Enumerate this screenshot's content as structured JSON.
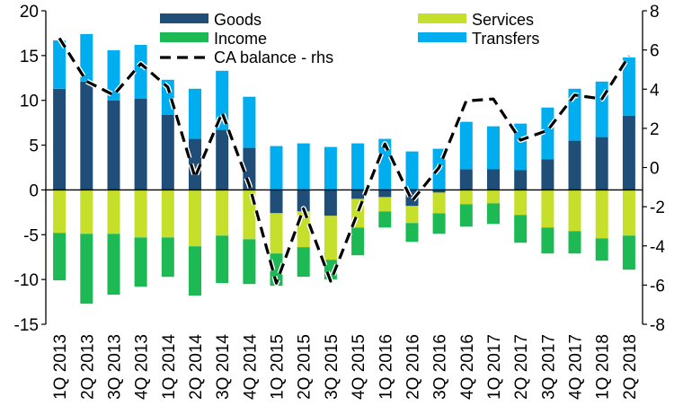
{
  "chart_data": {
    "type": "bar",
    "stacked": true,
    "categories": [
      "1Q 2013",
      "2Q 2013",
      "3Q 2013",
      "4Q 2013",
      "1Q 2014",
      "2Q 2014",
      "3Q 2014",
      "4Q 2014",
      "1Q 2015",
      "2Q 2015",
      "3Q 2015",
      "4Q 2015",
      "1Q 2016",
      "2Q 2016",
      "3Q 2016",
      "4Q 2016",
      "1Q 2017",
      "2Q 2017",
      "3Q 2017",
      "4Q 2017",
      "1Q 2018",
      "2Q 2018"
    ],
    "series": [
      {
        "name": "Goods",
        "color": "#1f4e79",
        "values": [
          11.3,
          12.1,
          10.0,
          10.2,
          8.4,
          5.7,
          6.7,
          4.7,
          -2.6,
          -2.4,
          -2.9,
          -1.0,
          -0.8,
          -1.8,
          -0.3,
          2.3,
          2.3,
          2.2,
          3.4,
          5.5,
          5.9,
          8.3
        ]
      },
      {
        "name": "Services",
        "color": "#c5df2a",
        "values": [
          -4.8,
          -4.9,
          -4.9,
          -5.3,
          -5.3,
          -6.3,
          -5.1,
          -5.5,
          -4.5,
          -4.0,
          -4.9,
          -3.2,
          -1.6,
          -1.9,
          -2.3,
          -1.6,
          -1.5,
          -2.8,
          -4.2,
          -4.6,
          -5.4,
          -5.1
        ]
      },
      {
        "name": "Income",
        "color": "#1db954",
        "values": [
          -5.3,
          -7.8,
          -6.8,
          -5.5,
          -4.4,
          -5.5,
          -5.3,
          -5.0,
          -3.6,
          -3.3,
          -2.2,
          -3.1,
          -1.8,
          -2.1,
          -2.3,
          -2.5,
          -2.3,
          -3.1,
          -2.9,
          -2.5,
          -2.5,
          -3.8
        ]
      },
      {
        "name": "Transfers",
        "color": "#00adef",
        "values": [
          5.4,
          5.3,
          5.6,
          6.0,
          3.9,
          5.6,
          6.6,
          5.7,
          4.9,
          5.2,
          4.8,
          5.2,
          5.7,
          4.3,
          4.6,
          5.3,
          4.8,
          5.2,
          5.8,
          5.8,
          6.2,
          6.5
        ]
      }
    ],
    "line": {
      "name": "CA balance - rhs",
      "color": "#000000",
      "axis": "right",
      "values": [
        6.6,
        4.4,
        3.7,
        5.3,
        4.1,
        -0.5,
        2.8,
        -0.9,
        -5.9,
        -2.1,
        -5.8,
        -2.3,
        1.2,
        -1.7,
        0.0,
        3.4,
        3.5,
        1.4,
        1.9,
        3.7,
        3.5,
        5.7
      ]
    },
    "y_left": {
      "min": -15,
      "max": 20,
      "ticks": [
        -15,
        -10,
        -5,
        0,
        5,
        10,
        15,
        20
      ]
    },
    "y_right": {
      "min": -8,
      "max": 8,
      "ticks": [
        -8,
        -6,
        -4,
        -2,
        0,
        2,
        4,
        6,
        8
      ]
    },
    "grid": false,
    "legend": {
      "placement": "top",
      "entries": [
        {
          "label": "Goods",
          "kind": "bar",
          "color": "#1f4e79"
        },
        {
          "label": "Income",
          "kind": "bar",
          "color": "#1db954"
        },
        {
          "label": "CA balance - rhs",
          "kind": "dash",
          "color": "#000000"
        },
        {
          "label": "Services",
          "kind": "bar",
          "color": "#c5df2a"
        },
        {
          "label": "Transfers",
          "kind": "bar",
          "color": "#00adef"
        }
      ]
    }
  }
}
